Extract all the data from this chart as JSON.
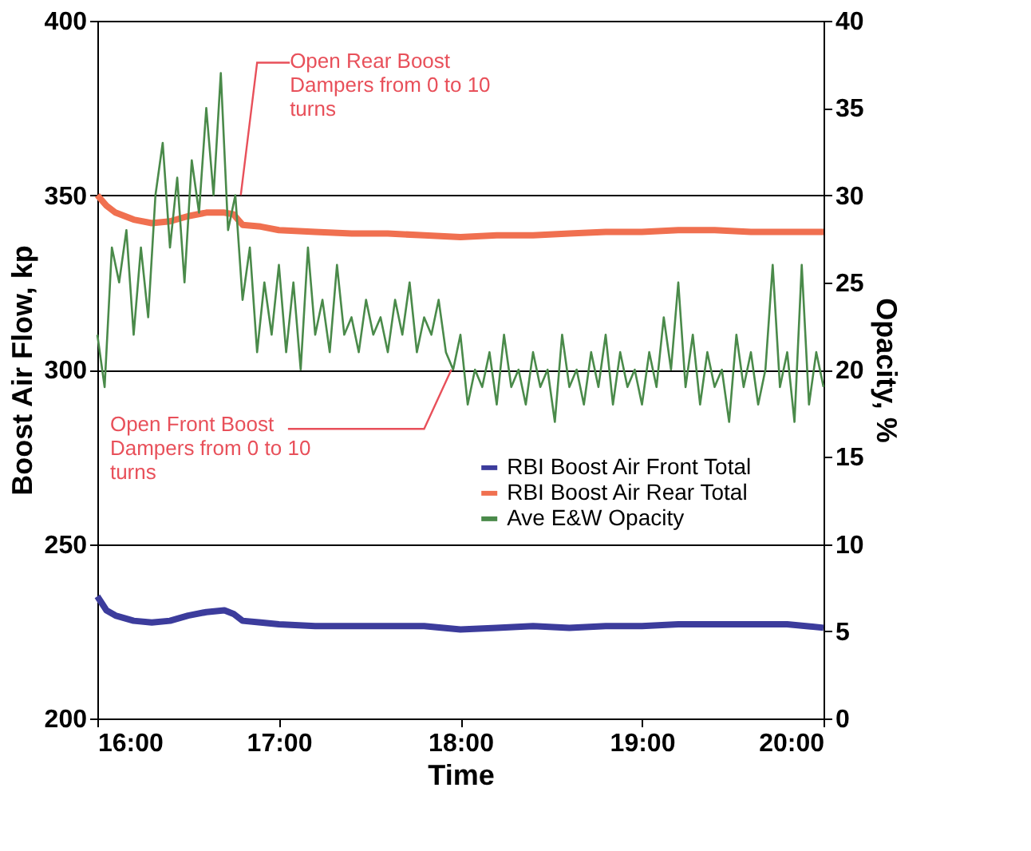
{
  "chart_data": {
    "type": "line",
    "xlabel": "Time",
    "ylabel": "Boost Air Flow, kp",
    "y2label": "Opacity, %",
    "xlim": [
      16,
      20
    ],
    "xticks": [
      {
        "value": 16,
        "label": "16:00"
      },
      {
        "value": 17,
        "label": "17:00"
      },
      {
        "value": 18,
        "label": "18:00"
      },
      {
        "value": 19,
        "label": "19:00"
      },
      {
        "value": 20,
        "label": "20:00"
      }
    ],
    "ylim": [
      200,
      400
    ],
    "yticks": [
      200,
      250,
      300,
      350,
      400
    ],
    "y2lim": [
      0,
      40
    ],
    "y2ticks": [
      0,
      5,
      10,
      15,
      20,
      25,
      30,
      35,
      40
    ],
    "grid": "y",
    "legend": "right",
    "annotations": [
      {
        "text": "Open Rear Boost Dampers from 0 to 10 turns",
        "x": 16.79,
        "y": 350
      },
      {
        "text": "Open Front Boost Dampers from 0 to 10 turns",
        "x": 17.95,
        "y": 300
      }
    ],
    "series": [
      {
        "name": "RBI Boost Air Front Total",
        "color": "#3c3c9c",
        "x": [
          16.0,
          16.05,
          16.1,
          16.2,
          16.3,
          16.4,
          16.5,
          16.6,
          16.7,
          16.75,
          16.8,
          16.9,
          17.0,
          17.2,
          17.4,
          17.6,
          17.8,
          18.0,
          18.2,
          18.4,
          18.6,
          18.8,
          19.0,
          19.2,
          19.4,
          19.6,
          19.8,
          20.0
        ],
        "values": [
          235,
          231,
          229.5,
          228,
          227.5,
          228,
          229.5,
          230.5,
          231,
          230,
          228,
          227.5,
          227,
          226.5,
          226.5,
          226.5,
          226.5,
          225.5,
          226,
          226.5,
          226,
          226.5,
          226.5,
          227,
          227,
          227,
          227,
          226
        ]
      },
      {
        "name": "RBI Boost Air Rear Total",
        "color": "#f07050",
        "x": [
          16.0,
          16.05,
          16.1,
          16.2,
          16.3,
          16.4,
          16.5,
          16.6,
          16.7,
          16.75,
          16.8,
          16.9,
          17.0,
          17.2,
          17.4,
          17.6,
          17.8,
          18.0,
          18.2,
          18.4,
          18.6,
          18.8,
          19.0,
          19.2,
          19.4,
          19.6,
          19.8,
          20.0
        ],
        "values": [
          350,
          347,
          345,
          343,
          342,
          342.5,
          344,
          345,
          345,
          344.5,
          341.5,
          341,
          340,
          339.5,
          339,
          339,
          338.5,
          338,
          338.5,
          338.5,
          339,
          339.5,
          339.5,
          340,
          340,
          339.5,
          339.5,
          339.5
        ]
      },
      {
        "name": "Ave E&W Opacity",
        "color": "#4a8a4a",
        "axis": "y2",
        "x": [
          16.0,
          16.04,
          16.08,
          16.12,
          16.16,
          16.2,
          16.24,
          16.28,
          16.32,
          16.36,
          16.4,
          16.44,
          16.48,
          16.52,
          16.56,
          16.6,
          16.64,
          16.68,
          16.72,
          16.76,
          16.8,
          16.84,
          16.88,
          16.92,
          16.96,
          17.0,
          17.04,
          17.08,
          17.12,
          17.16,
          17.2,
          17.24,
          17.28,
          17.32,
          17.36,
          17.4,
          17.44,
          17.48,
          17.52,
          17.56,
          17.6,
          17.64,
          17.68,
          17.72,
          17.76,
          17.8,
          17.84,
          17.88,
          17.92,
          17.96,
          18.0,
          18.04,
          18.08,
          18.12,
          18.16,
          18.2,
          18.24,
          18.28,
          18.32,
          18.36,
          18.4,
          18.44,
          18.48,
          18.52,
          18.56,
          18.6,
          18.64,
          18.68,
          18.72,
          18.76,
          18.8,
          18.84,
          18.88,
          18.92,
          18.96,
          19.0,
          19.04,
          19.08,
          19.12,
          19.16,
          19.2,
          19.24,
          19.28,
          19.32,
          19.36,
          19.4,
          19.44,
          19.48,
          19.52,
          19.56,
          19.6,
          19.64,
          19.68,
          19.72,
          19.76,
          19.8,
          19.84,
          19.88,
          19.92,
          19.96,
          20.0
        ],
        "values": [
          22,
          19,
          27,
          25,
          28,
          22,
          27,
          23,
          30,
          33,
          27,
          31,
          25,
          32,
          29,
          35,
          30,
          37,
          28,
          30,
          24,
          27,
          21,
          25,
          22,
          26,
          21,
          25,
          20,
          27,
          22,
          24,
          21,
          26,
          22,
          23,
          21,
          24,
          22,
          23,
          21,
          24,
          22,
          25,
          21,
          23,
          22,
          24,
          21,
          20,
          22,
          18,
          20,
          19,
          21,
          18,
          22,
          19,
          20,
          18,
          21,
          19,
          20,
          17,
          22,
          19,
          20,
          18,
          21,
          19,
          22,
          18,
          21,
          19,
          20,
          18,
          21,
          19,
          23,
          20,
          25,
          19,
          22,
          18,
          21,
          19,
          20,
          17,
          22,
          19,
          21,
          18,
          20,
          26,
          19,
          21,
          17,
          26,
          18,
          21,
          19
        ]
      }
    ]
  }
}
